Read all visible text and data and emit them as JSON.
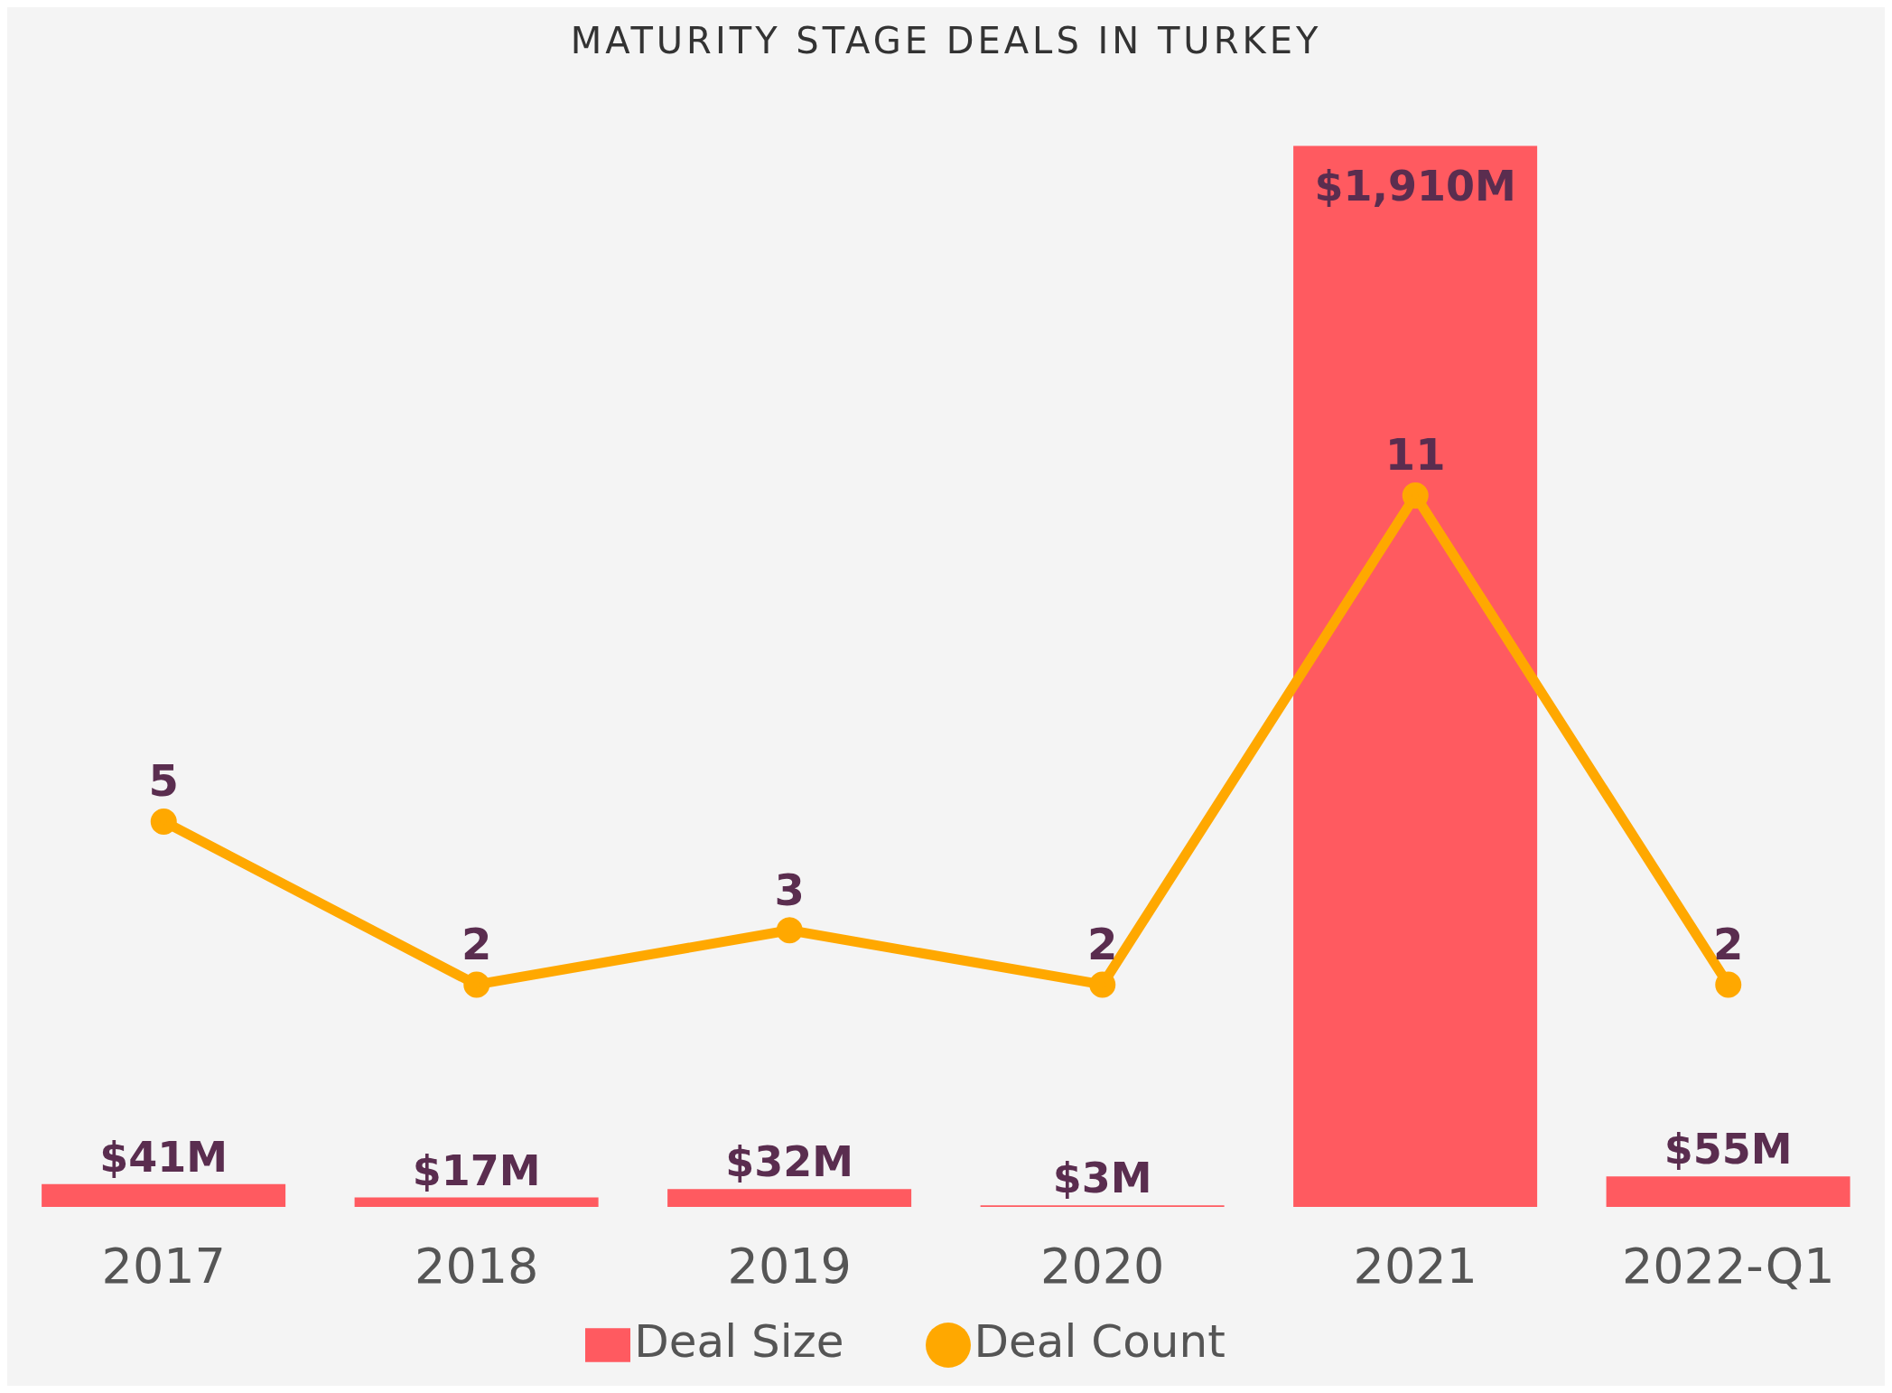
{
  "chart_data": {
    "type": "bar",
    "title": "MATURITY STAGE DEALS IN TURKEY",
    "categories": [
      "2017",
      "2018",
      "2019",
      "2020",
      "2021",
      "2022-Q1"
    ],
    "series": [
      {
        "name": "Deal Size",
        "color": "#ff5a60",
        "values": [
          41,
          17,
          32,
          3,
          1910,
          55
        ],
        "value_labels": [
          "$41M",
          "$17M",
          "$32M",
          "$3M",
          "$1,910M",
          "$55M"
        ]
      },
      {
        "name": "Deal Count",
        "type": "line",
        "axis": "y2",
        "color": "#ffa800",
        "values": [
          5,
          2,
          3,
          2,
          11,
          2
        ],
        "value_labels": [
          "5",
          "2",
          "3",
          "2",
          "11",
          "2"
        ]
      }
    ],
    "legend": "bottom",
    "marker": "circle"
  }
}
